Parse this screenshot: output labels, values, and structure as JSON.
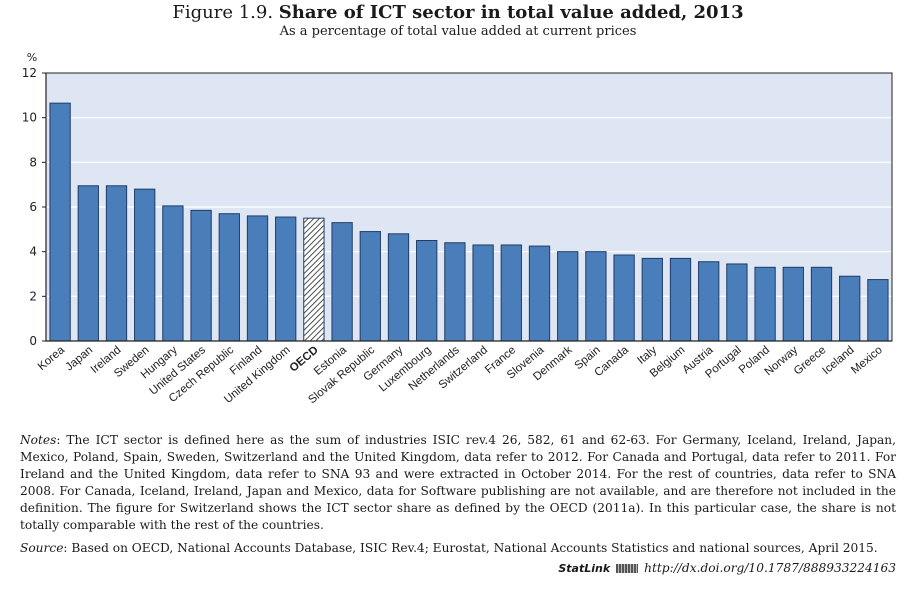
{
  "figure": {
    "number": "Figure 1.9.",
    "title": "Share of ICT sector in total value added, 2013",
    "subtitle": "As a percentage of total value added at current prices"
  },
  "chart_data": {
    "type": "bar",
    "ylabel": "%",
    "ylim": [
      0,
      12
    ],
    "yticks": [
      0,
      2,
      4,
      6,
      8,
      10,
      12
    ],
    "grid": true,
    "categories": [
      "Korea",
      "Japan",
      "Ireland",
      "Sweden",
      "Hungary",
      "United States",
      "Czech Republic",
      "Finland",
      "United Kingdom",
      "OECD",
      "Estonia",
      "Slovak Republic",
      "Germany",
      "Luxembourg",
      "Netherlands",
      "Switzerland",
      "France",
      "Slovenia",
      "Denmark",
      "Spain",
      "Canada",
      "Italy",
      "Belgium",
      "Austria",
      "Portugal",
      "Poland",
      "Norway",
      "Greece",
      "Iceland",
      "Mexico"
    ],
    "values": [
      10.65,
      6.95,
      6.95,
      6.8,
      6.05,
      5.85,
      5.7,
      5.6,
      5.55,
      5.5,
      5.3,
      4.9,
      4.8,
      4.5,
      4.4,
      4.3,
      4.3,
      4.25,
      4.0,
      4.0,
      3.85,
      3.7,
      3.7,
      3.55,
      3.45,
      3.3,
      3.3,
      3.3,
      2.9,
      2.75
    ],
    "highlight": "OECD",
    "colors": {
      "bar": "#4a7ebb",
      "bar_edge": "#1f3d66",
      "highlight_fill": "#ffffff",
      "plot_bg": "#dfe6f3",
      "grid": "#ffffff"
    }
  },
  "notes": {
    "lead": "Notes",
    "text": ": The ICT sector is defined here as the sum of industries ISIC rev.4 26, 582, 61 and 62-63. For Germany, Iceland, Ireland, Japan, Mexico, Poland, Spain, Sweden, Switzerland and the United Kingdom, data refer to 2012. For Canada and Portugal, data refer to 2011. For Ireland and the United Kingdom, data refer to SNA 93 and were extracted in October 2014. For the rest of countries, data refer to SNA 2008. For Canada, Iceland, Ireland, Japan and Mexico, data for Software publishing are not available, and are therefore not included in the definition. The figure for Switzerland shows the ICT sector share as defined by the OECD (2011a). In this particular case, the share is not totally comparable with the rest of the countries."
  },
  "source": {
    "lead": "Source",
    "text": ": Based on OECD, National Accounts Database, ISIC Rev.4; Eurostat, National Accounts Statistics and national sources, April 2015."
  },
  "statlink": {
    "brand": "StatLink",
    "icon": "statlink-icon",
    "url": "http://dx.doi.org/10.1787/888933224163"
  }
}
